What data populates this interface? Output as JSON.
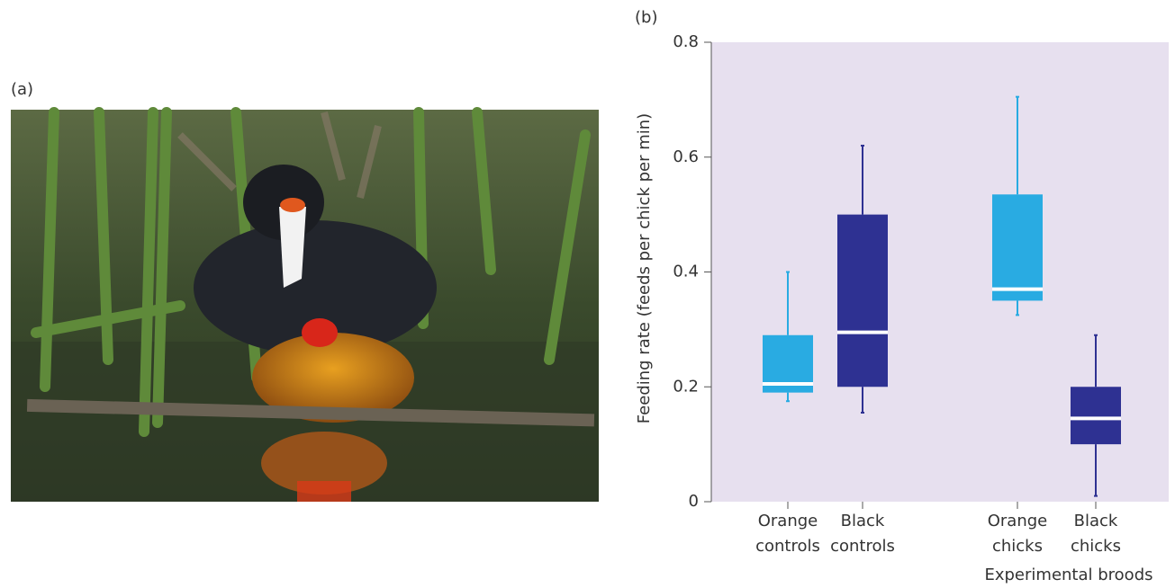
{
  "photo": {
    "label": "(a)"
  },
  "chart_data": {
    "type": "box",
    "panel_label": "(b)",
    "y_label": "Feeding rate (feeds per chick per min)",
    "group_label": "Experimental broods",
    "categories": [
      [
        "Orange",
        "controls"
      ],
      [
        "Black",
        "controls"
      ],
      [
        "Orange",
        "chicks"
      ],
      [
        "Black",
        "chicks"
      ]
    ],
    "low": [
      0.175,
      0.155,
      0.325,
      0.01
    ],
    "q1": [
      0.19,
      0.2,
      0.35,
      0.1
    ],
    "median": [
      0.205,
      0.295,
      0.37,
      0.145
    ],
    "q3": [
      0.29,
      0.5,
      0.535,
      0.2
    ],
    "high": [
      0.4,
      0.62,
      0.705,
      0.29
    ],
    "colors": [
      "#29abe2",
      "#2e3192",
      "#29abe2",
      "#2e3192"
    ],
    "ylim": [
      0,
      0.8
    ],
    "yticks": [
      0,
      0.2,
      0.4,
      0.6,
      0.8
    ],
    "background": "#e7e0ef"
  }
}
